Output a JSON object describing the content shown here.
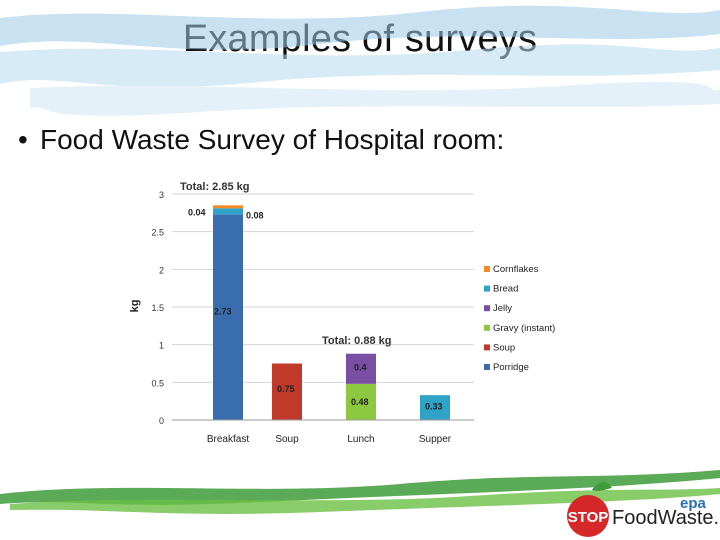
{
  "slide": {
    "title": "Examples of surveys",
    "bullet": "Food Waste Survey of Hospital room:"
  },
  "logo": {
    "stop_text": "STOP",
    "brand_text": "FoodWaste.ie",
    "epa_text": "epa"
  },
  "colors": {
    "porridge": "#3a6db0",
    "soup": "#c0392b",
    "gravy": "#8dc63f",
    "jelly": "#7a4fa3",
    "bread": "#2ea3c7",
    "cornflakes": "#f28c28"
  },
  "chart_data": {
    "type": "bar",
    "stacked": true,
    "categories": [
      "Breakfast",
      "Soup",
      "Lunch",
      "Supper"
    ],
    "ylabel": "kg",
    "ylim": [
      0,
      3
    ],
    "yticks": [
      0,
      0.5,
      1,
      1.5,
      2,
      2.5,
      3
    ],
    "grid": true,
    "legend_position": "right",
    "series": [
      {
        "name": "Porridge",
        "values": [
          2.73,
          0,
          0,
          0
        ]
      },
      {
        "name": "Soup",
        "values": [
          0,
          0.75,
          0,
          0
        ]
      },
      {
        "name": "Gravy (instant)",
        "values": [
          0,
          0,
          0.48,
          0
        ]
      },
      {
        "name": "Jelly",
        "values": [
          0,
          0,
          0.4,
          0
        ]
      },
      {
        "name": "Bread",
        "values": [
          0.08,
          0,
          0,
          0.33
        ]
      },
      {
        "name": "Cornflakes",
        "values": [
          0.04,
          0,
          0,
          0
        ]
      }
    ],
    "data_labels": [
      "2.73",
      "0.08",
      "0.04",
      "0.75",
      "0.48",
      "0.4",
      "0.33"
    ],
    "annotations": [
      "Total: 2.85 kg",
      "Total: 0.88 kg"
    ]
  }
}
